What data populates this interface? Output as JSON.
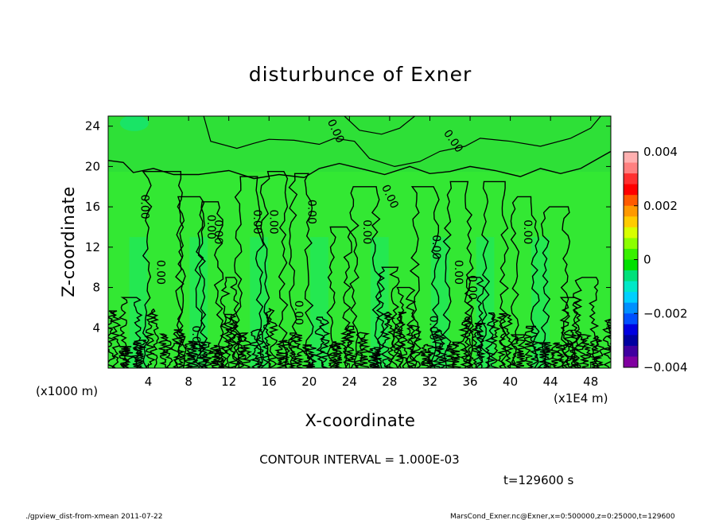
{
  "chart_data": {
    "type": "heatmap",
    "title": "disturbunce of Exner",
    "xlabel": "X-coordinate",
    "ylabel": "Z-coordinate",
    "x_unit_left": "(x1000 m)",
    "x_unit_right": "(x1E4 m)",
    "xlim": [
      0,
      50
    ],
    "ylim": [
      0,
      25
    ],
    "xticks": [
      4,
      8,
      12,
      16,
      20,
      24,
      28,
      32,
      36,
      40,
      44,
      48
    ],
    "yticks": [
      4,
      8,
      12,
      16,
      20,
      24
    ],
    "colorbar": {
      "min": -0.004,
      "max": 0.004,
      "tick_values": [
        0.004,
        0.002,
        0,
        -0.002,
        -0.004
      ],
      "tick_labels": [
        "0.004",
        "0.002",
        "0",
        "−0.002",
        "−0.004"
      ]
    },
    "colors": {
      "background_field": "#33e833",
      "near_zero": "#1ee01e",
      "slightly_negative": "#00e8a0",
      "upper_layer": "#2ad83a",
      "contour_line": "#000000"
    },
    "contour_interval_text": "CONTOUR INTERVAL = 1.000E-03",
    "contour_label": "0.00",
    "time_text": "t=129600 s",
    "footer_left": "./gpview_dist-from-xmean  2011-07-22",
    "footer_right": "MarsCond_Exner.nc@Exner,x=0:500000,z=0:25000,t=129600"
  }
}
